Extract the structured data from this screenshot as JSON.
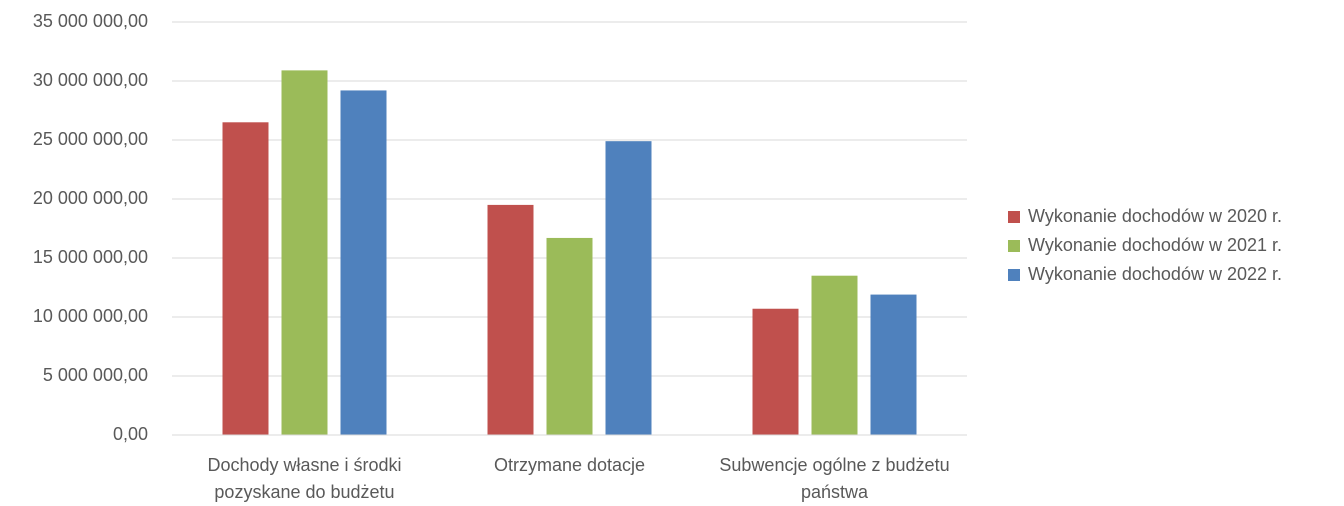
{
  "chart_data": {
    "type": "bar",
    "categories": [
      "Dochody własne i środki pozyskane do budżetu",
      "Otrzymane dotacje",
      "Subwencje ogólne z budżetu państwa"
    ],
    "series": [
      {
        "name": "Wykonanie dochodów w 2020 r.",
        "color": "#c0504d",
        "values": [
          26500000,
          19500000,
          10700000
        ]
      },
      {
        "name": "Wykonanie dochodów w 2021 r.",
        "color": "#9bbb59",
        "values": [
          30900000,
          16700000,
          13500000
        ]
      },
      {
        "name": "Wykonanie dochodów w 2022 r.",
        "color": "#4f81bd",
        "values": [
          29200000,
          24900000,
          11900000
        ]
      }
    ],
    "ylim": [
      0,
      35000000
    ],
    "yticks": [
      {
        "value": 0,
        "label": "0,00"
      },
      {
        "value": 5000000,
        "label": "5 000 000,00"
      },
      {
        "value": 10000000,
        "label": "10 000 000,00"
      },
      {
        "value": 15000000,
        "label": "15 000 000,00"
      },
      {
        "value": 20000000,
        "label": "20 000 000,00"
      },
      {
        "value": 25000000,
        "label": "25 000 000,00"
      },
      {
        "value": 30000000,
        "label": "30 000 000,00"
      },
      {
        "value": 35000000,
        "label": "35 000 000,00"
      }
    ],
    "grid": true,
    "legend": "right"
  }
}
